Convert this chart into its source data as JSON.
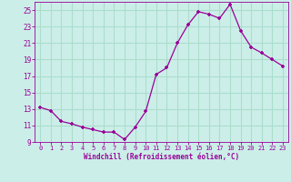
{
  "x": [
    0,
    1,
    2,
    3,
    4,
    5,
    6,
    7,
    8,
    9,
    10,
    11,
    12,
    13,
    14,
    15,
    16,
    17,
    18,
    19,
    20,
    21,
    22,
    23
  ],
  "y": [
    13.2,
    12.8,
    11.5,
    11.2,
    10.8,
    10.5,
    10.2,
    10.2,
    9.3,
    10.8,
    12.7,
    17.2,
    18.0,
    21.0,
    23.2,
    24.8,
    24.5,
    24.0,
    25.7,
    22.5,
    20.5,
    19.8,
    19.0,
    18.2
  ],
  "line_color": "#990099",
  "marker": "+",
  "bg_color": "#cceee8",
  "grid_color": "#aaddcc",
  "xlabel": "Windchill (Refroidissement éolien,°C)",
  "ylabel": "",
  "ylim": [
    9,
    26
  ],
  "xlim": [
    -0.5,
    23.5
  ],
  "yticks": [
    9,
    11,
    13,
    15,
    17,
    19,
    21,
    23,
    25
  ],
  "xticks": [
    0,
    1,
    2,
    3,
    4,
    5,
    6,
    7,
    8,
    9,
    10,
    11,
    12,
    13,
    14,
    15,
    16,
    17,
    18,
    19,
    20,
    21,
    22,
    23
  ],
  "font_color": "#990099"
}
